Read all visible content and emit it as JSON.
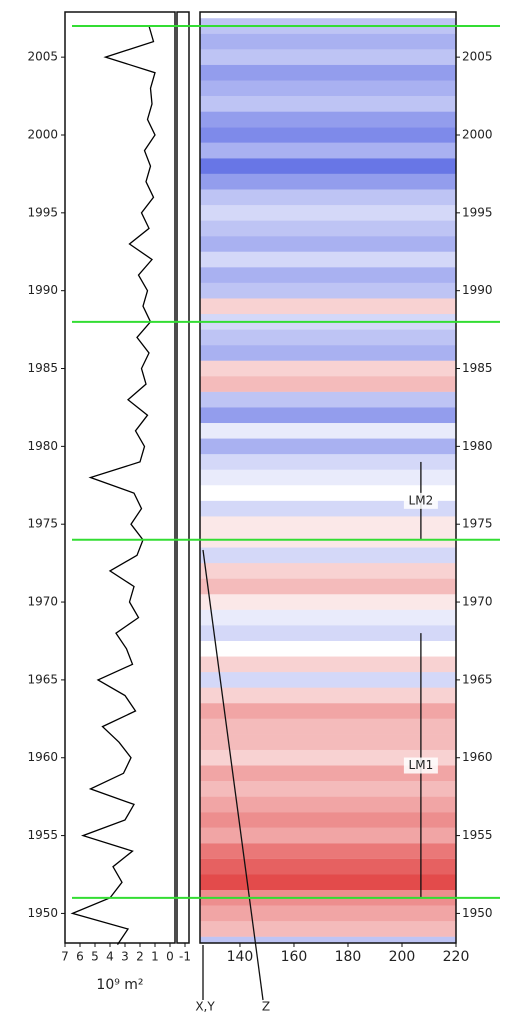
{
  "chart_data": [
    {
      "type": "line",
      "xlabel": "10⁹ m²",
      "color": "#000000",
      "xlim": [
        7,
        -1
      ],
      "xticks": [
        7,
        6,
        5,
        4,
        3,
        2,
        1,
        0,
        -1
      ],
      "ylim": [
        1948.1,
        2007.9
      ],
      "yticks": [
        1950,
        1955,
        1960,
        1965,
        1970,
        1975,
        1980,
        1985,
        1990,
        1995,
        2000,
        2005
      ],
      "y": [
        1948,
        1949,
        1950,
        1951,
        1952,
        1953,
        1954,
        1955,
        1956,
        1957,
        1958,
        1959,
        1960,
        1961,
        1962,
        1963,
        1964,
        1965,
        1966,
        1967,
        1968,
        1969,
        1970,
        1971,
        1972,
        1973,
        1974,
        1975,
        1976,
        1977,
        1978,
        1979,
        1980,
        1981,
        1982,
        1983,
        1984,
        1985,
        1986,
        1987,
        1988,
        1989,
        1990,
        1991,
        1992,
        1993,
        1994,
        1995,
        1996,
        1997,
        1998,
        1999,
        2000,
        2001,
        2002,
        2003,
        2004,
        2005,
        2006,
        2007
      ],
      "values": [
        3.5,
        2.8,
        6.5,
        4.0,
        3.2,
        3.8,
        2.5,
        5.8,
        3.0,
        2.4,
        5.3,
        3.1,
        2.6,
        3.4,
        4.5,
        2.3,
        3.0,
        4.8,
        2.5,
        2.9,
        3.6,
        2.1,
        2.7,
        2.4,
        4.0,
        2.2,
        1.8,
        2.6,
        1.9,
        2.4,
        5.3,
        2.0,
        1.7,
        2.3,
        1.5,
        2.8,
        1.6,
        1.9,
        1.4,
        2.2,
        1.3,
        1.8,
        1.5,
        2.1,
        1.2,
        2.7,
        1.4,
        1.9,
        1.1,
        1.6,
        1.3,
        1.7,
        1.0,
        1.5,
        1.2,
        1.3,
        1.0,
        4.3,
        1.1,
        1.4
      ]
    },
    {
      "type": "heatmap",
      "xlim": [
        125.2,
        220
      ],
      "xticks": [
        140,
        160,
        180,
        200,
        220
      ],
      "ylim": [
        1948.1,
        2007.9
      ],
      "yticks": [
        1950,
        1955,
        1960,
        1965,
        1970,
        1975,
        1980,
        1985,
        1990,
        1995,
        2000,
        2005
      ],
      "y": [
        1948,
        1949,
        1950,
        1951,
        1952,
        1953,
        1954,
        1955,
        1956,
        1957,
        1958,
        1959,
        1960,
        1961,
        1962,
        1963,
        1964,
        1965,
        1966,
        1967,
        1968,
        1969,
        1970,
        1971,
        1972,
        1973,
        1974,
        1975,
        1976,
        1977,
        1978,
        1979,
        1980,
        1981,
        1982,
        1983,
        1984,
        1985,
        1986,
        1987,
        1988,
        1989,
        1990,
        1991,
        1992,
        1993,
        1994,
        1995,
        1996,
        1997,
        1998,
        1999,
        2000,
        2001,
        2002,
        2003,
        2004,
        2005,
        2006,
        2007
      ],
      "values": [
        -0.3,
        0.3,
        0.4,
        0.5,
        0.8,
        0.7,
        0.6,
        0.4,
        0.5,
        0.4,
        0.3,
        0.4,
        0.2,
        0.3,
        0.3,
        0.4,
        0.2,
        -0.2,
        0.2,
        0.0,
        -0.2,
        -0.1,
        0.1,
        0.3,
        0.2,
        -0.2,
        0.1,
        0.1,
        -0.2,
        0.0,
        -0.1,
        -0.2,
        -0.4,
        -0.1,
        -0.5,
        -0.3,
        0.3,
        0.2,
        -0.4,
        -0.3,
        -0.2,
        0.2,
        -0.3,
        -0.4,
        -0.2,
        -0.4,
        -0.3,
        -0.2,
        -0.3,
        -0.5,
        -0.7,
        -0.4,
        -0.6,
        -0.5,
        -0.3,
        -0.4,
        -0.5,
        -0.3,
        -0.4,
        -0.3
      ],
      "reference_lines": [
        2007,
        1988,
        1974,
        1951
      ],
      "reference_color": "#33dd33",
      "annotations": [
        {
          "text": "LM2",
          "x": 207,
          "start": 1974,
          "end": 1979
        },
        {
          "text": "LM1",
          "x": 207,
          "start": 1951,
          "end": 1968
        }
      ],
      "markers": [
        "X,Y",
        "Z"
      ]
    }
  ]
}
